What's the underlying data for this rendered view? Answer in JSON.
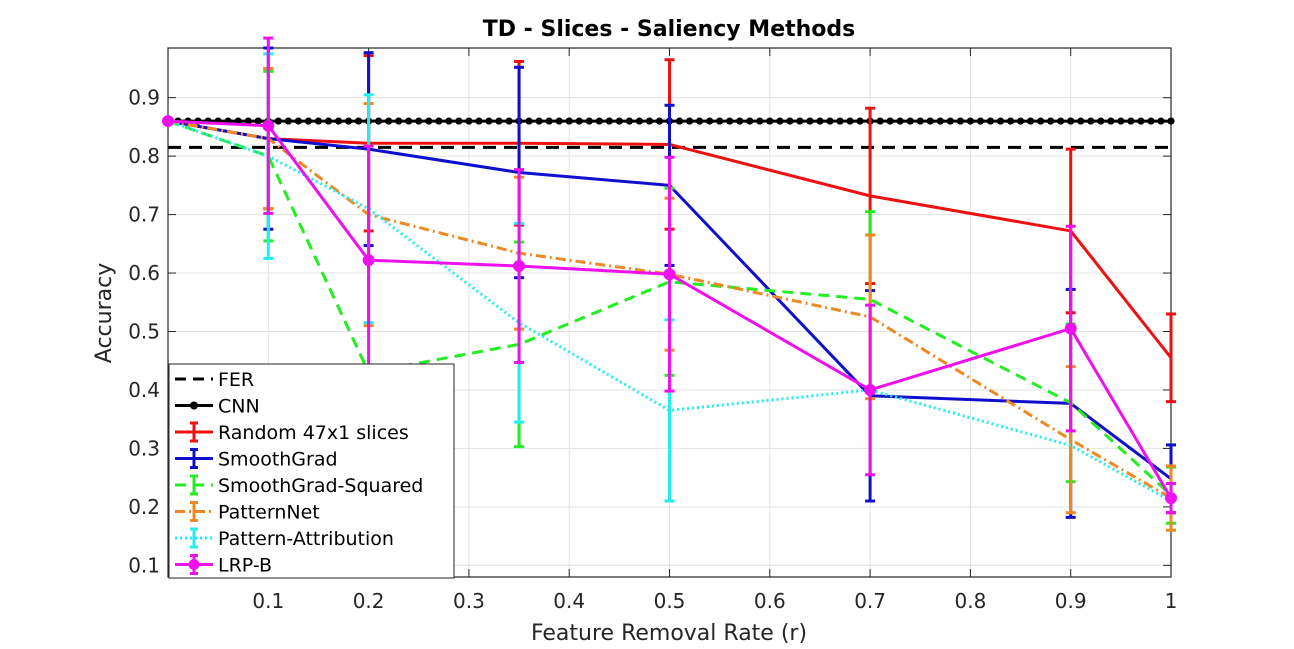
{
  "chart_data": {
    "type": "line",
    "title": "TD - Slices - Saliency Methods",
    "xlabel": "Feature Removal Rate (r)",
    "ylabel": "Accuracy",
    "xlim": [
      0,
      1
    ],
    "ylim": [
      0.08,
      0.985
    ],
    "xticks": [
      0.1,
      0.2,
      0.3,
      0.4,
      0.5,
      0.6,
      0.7,
      0.8,
      0.9,
      1
    ],
    "xtick_labels": [
      "0.1",
      "0.2",
      "0.3",
      "0.4",
      "0.5",
      "0.6",
      "0.7",
      "0.8",
      "0.9",
      "1"
    ],
    "yticks": [
      0.1,
      0.2,
      0.3,
      0.4,
      0.5,
      0.6,
      0.7,
      0.8,
      0.9
    ],
    "ytick_labels": [
      "0.1",
      "0.2",
      "0.3",
      "0.4",
      "0.5",
      "0.6",
      "0.7",
      "0.8",
      "0.9"
    ],
    "grid": true,
    "legend_position": "bottom-left",
    "reference_lines": [
      {
        "name": "FER",
        "value": 0.815,
        "color": "#000000",
        "dash": "dashed"
      },
      {
        "name": "CNN",
        "value": 0.86,
        "color": "#000000",
        "marker": "dot",
        "n_markers": 101
      }
    ],
    "series": [
      {
        "name": "Random 47x1 slices",
        "color": "#ee1111",
        "dash": "solid",
        "x": [
          0,
          0.1,
          0.2,
          0.35,
          0.5,
          0.7,
          0.9,
          1
        ],
        "y": [
          0.86,
          0.83,
          0.822,
          0.822,
          0.82,
          0.732,
          0.672,
          0.455
        ],
        "err": [
          0,
          0.12,
          0.15,
          0.14,
          0.145,
          0.15,
          0.14,
          0.075
        ]
      },
      {
        "name": "SmoothGrad",
        "color": "#1010cc",
        "dash": "solid",
        "x": [
          0,
          0.1,
          0.2,
          0.35,
          0.5,
          0.7,
          0.9,
          1
        ],
        "y": [
          0.86,
          0.83,
          0.812,
          0.772,
          0.75,
          0.39,
          0.377,
          0.248
        ],
        "err": [
          0,
          0.155,
          0.165,
          0.18,
          0.137,
          0.18,
          0.195,
          0.058
        ]
      },
      {
        "name": "SmoothGrad-Squared",
        "color": "#22ee22",
        "dash": "dashed",
        "x": [
          0,
          0.1,
          0.2,
          0.35,
          0.5,
          0.7,
          0.9,
          1
        ],
        "y": [
          0.86,
          0.8,
          0.43,
          0.478,
          0.585,
          0.555,
          0.378,
          0.22
        ],
        "err": [
          0,
          0.145,
          0.0,
          0.175,
          0.16,
          0.15,
          0.135,
          0.048
        ]
      },
      {
        "name": "PatternNet",
        "color": "#ee8822",
        "dash": "dashdot",
        "x": [
          0,
          0.1,
          0.2,
          0.35,
          0.5,
          0.7,
          0.9,
          1
        ],
        "y": [
          0.86,
          0.83,
          0.7,
          0.634,
          0.598,
          0.525,
          0.315,
          0.215
        ],
        "err": [
          0,
          0.12,
          0.19,
          0.13,
          0.13,
          0.14,
          0.125,
          0.055
        ]
      },
      {
        "name": "Pattern-Attribution",
        "color": "#22eeee",
        "dash": "dotted",
        "x": [
          0,
          0.1,
          0.2,
          0.35,
          0.5,
          0.7,
          0.9,
          1
        ],
        "y": [
          0.86,
          0.8,
          0.71,
          0.515,
          0.365,
          0.4,
          0.305,
          0.21
        ],
        "err": [
          0,
          0.175,
          0.195,
          0.17,
          0.155,
          0.0,
          0.0,
          0.0
        ]
      },
      {
        "name": "LRP-B",
        "color": "#ee11ee",
        "dash": "solid",
        "marker": "dot",
        "x": [
          0,
          0.1,
          0.2,
          0.35,
          0.5,
          0.7,
          0.9,
          1
        ],
        "y": [
          0.86,
          0.852,
          0.622,
          0.612,
          0.598,
          0.4,
          0.505,
          0.215
        ],
        "err": [
          0,
          0.15,
          0.195,
          0.165,
          0.2,
          0.145,
          0.175,
          0.025
        ]
      }
    ]
  }
}
